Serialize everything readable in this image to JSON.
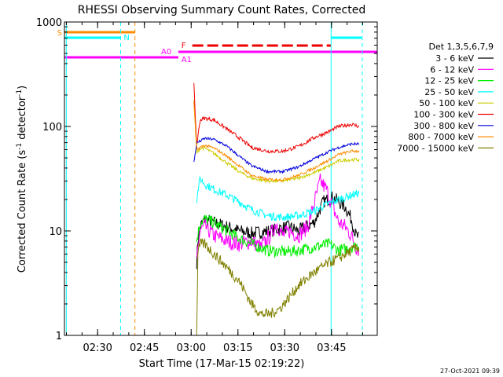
{
  "chart_data": {
    "type": "line",
    "title": "RHESSI Observing Summary Count Rates, Corrected",
    "xlabel": "Start Time (17-Mar-15 02:19:22)",
    "ylabel_main": "Corrected Count Rate (s",
    "ylabel_sup1": "-1",
    "ylabel_mid": " detector",
    "ylabel_sup2": "-1",
    "ylabel_end": ")",
    "yscale": "log",
    "ylim": [
      1,
      1000
    ],
    "xlim": [
      "02:19:22",
      "03:59:40"
    ],
    "x_ticks": [
      "02:30",
      "02:45",
      "03:00",
      "03:15",
      "03:30",
      "03:45"
    ],
    "y_ticks": [
      "1",
      "10",
      "100",
      "1000"
    ],
    "legend": {
      "title": "Det 1,3,5,6,7,9",
      "placement": "right",
      "entries": [
        {
          "label": "3 - 6 keV",
          "color": "#000000"
        },
        {
          "label": "6 - 12 keV",
          "color": "#ff00ff"
        },
        {
          "label": "12 - 25 keV",
          "color": "#00ee00"
        },
        {
          "label": "25 - 50 keV",
          "color": "#00ffff"
        },
        {
          "label": "50 - 100 keV",
          "color": "#cccc00"
        },
        {
          "label": "100 - 300 keV",
          "color": "#ee0000"
        },
        {
          "label": "300 - 800 keV",
          "color": "#0000dd"
        },
        {
          "label": "800 - 7000 keV",
          "color": "#ff8c00"
        },
        {
          "label": "7000 - 15000 keV",
          "color": "#808000"
        }
      ]
    },
    "series": [
      {
        "name": "3 - 6 keV",
        "color": "#000000",
        "noise": 0.25,
        "points": [
          [
            42.4,
            5
          ],
          [
            42.8,
            8
          ],
          [
            43.5,
            11
          ],
          [
            45,
            13
          ],
          [
            48,
            12
          ],
          [
            52,
            11
          ],
          [
            56,
            10
          ],
          [
            60,
            9.5
          ],
          [
            66,
            10
          ],
          [
            72,
            11
          ],
          [
            75,
            10
          ],
          [
            80,
            12
          ],
          [
            83,
            19
          ],
          [
            86,
            21
          ],
          [
            90,
            17
          ],
          [
            92,
            13
          ],
          [
            93.5,
            9
          ],
          [
            94.5,
            8.5
          ]
        ]
      },
      {
        "name": "6 - 12 keV",
        "color": "#ff00ff",
        "noise": 0.3,
        "points": [
          [
            42.4,
            5
          ],
          [
            42.8,
            7
          ],
          [
            43.5,
            10
          ],
          [
            45,
            11
          ],
          [
            48,
            9
          ],
          [
            52,
            8
          ],
          [
            56,
            7.5
          ],
          [
            60,
            8
          ],
          [
            63,
            7
          ],
          [
            66,
            9
          ],
          [
            68,
            12
          ],
          [
            70,
            9
          ],
          [
            72,
            10
          ],
          [
            75,
            9
          ],
          [
            78,
            11
          ],
          [
            80,
            18
          ],
          [
            82,
            30
          ],
          [
            84,
            25
          ],
          [
            86,
            17
          ],
          [
            88,
            12
          ],
          [
            90,
            11
          ],
          [
            92,
            9
          ],
          [
            93.5,
            7
          ],
          [
            94.5,
            6.5
          ]
        ]
      },
      {
        "name": "12 - 25 keV",
        "color": "#00ee00",
        "noise": 0.22,
        "points": [
          [
            42.4,
            8
          ],
          [
            43.5,
            12
          ],
          [
            45,
            13
          ],
          [
            48,
            12
          ],
          [
            52,
            10
          ],
          [
            56,
            8.5
          ],
          [
            60,
            7.5
          ],
          [
            65,
            6.5
          ],
          [
            70,
            6.3
          ],
          [
            75,
            6.5
          ],
          [
            80,
            7
          ],
          [
            85,
            7.5
          ],
          [
            88,
            6.5
          ],
          [
            92,
            7
          ],
          [
            94.5,
            7.2
          ]
        ]
      },
      {
        "name": "25 - 50 keV",
        "color": "#00ffff",
        "noise": 0.15,
        "points": [
          [
            42.4,
            20
          ],
          [
            43.5,
            32
          ],
          [
            45,
            28
          ],
          [
            48,
            25
          ],
          [
            52,
            22
          ],
          [
            56,
            19
          ],
          [
            60,
            16
          ],
          [
            65,
            14
          ],
          [
            70,
            13.5
          ],
          [
            75,
            14
          ],
          [
            80,
            15.5
          ],
          [
            85,
            18.5
          ],
          [
            88,
            20
          ],
          [
            92,
            22
          ],
          [
            94.5,
            23
          ]
        ]
      },
      {
        "name": "50 - 100 keV",
        "color": "#cccc00",
        "noise": 0.06,
        "points": [
          [
            41.5,
            180
          ],
          [
            42.4,
            55
          ],
          [
            43.5,
            62
          ],
          [
            45,
            62
          ],
          [
            48,
            55
          ],
          [
            52,
            45
          ],
          [
            56,
            37
          ],
          [
            60,
            32
          ],
          [
            65,
            30
          ],
          [
            70,
            30
          ],
          [
            75,
            32
          ],
          [
            80,
            36
          ],
          [
            85,
            42
          ],
          [
            88,
            47
          ],
          [
            92,
            48
          ],
          [
            94.5,
            48
          ]
        ]
      },
      {
        "name": "100 - 300 keV",
        "color": "#ee0000",
        "noise": 0.07,
        "points": [
          [
            41.5,
            250
          ],
          [
            42.4,
            65
          ],
          [
            43.5,
            115
          ],
          [
            45,
            120
          ],
          [
            48,
            115
          ],
          [
            52,
            95
          ],
          [
            56,
            78
          ],
          [
            60,
            63
          ],
          [
            65,
            58
          ],
          [
            70,
            58
          ],
          [
            75,
            64
          ],
          [
            80,
            78
          ],
          [
            85,
            90
          ],
          [
            88,
            100
          ],
          [
            92,
            105
          ],
          [
            94.5,
            100
          ]
        ]
      },
      {
        "name": "300 - 800 keV",
        "color": "#0000dd",
        "noise": 0.05,
        "points": [
          [
            41.5,
            45
          ],
          [
            42.4,
            70
          ],
          [
            43.5,
            72
          ],
          [
            45,
            77
          ],
          [
            48,
            75
          ],
          [
            52,
            65
          ],
          [
            56,
            52
          ],
          [
            60,
            42
          ],
          [
            65,
            37
          ],
          [
            70,
            37
          ],
          [
            75,
            41
          ],
          [
            80,
            49
          ],
          [
            85,
            58
          ],
          [
            88,
            63
          ],
          [
            92,
            68
          ],
          [
            94.5,
            68
          ]
        ]
      },
      {
        "name": "800 - 7000 keV",
        "color": "#ff8c00",
        "noise": 0.05,
        "points": [
          [
            41.5,
            170
          ],
          [
            42.4,
            60
          ],
          [
            43.5,
            63
          ],
          [
            45,
            66
          ],
          [
            48,
            62
          ],
          [
            52,
            52
          ],
          [
            56,
            42
          ],
          [
            60,
            34
          ],
          [
            65,
            31
          ],
          [
            70,
            31
          ],
          [
            75,
            34
          ],
          [
            80,
            40
          ],
          [
            85,
            48
          ],
          [
            88,
            54
          ],
          [
            92,
            58
          ],
          [
            94.5,
            58
          ]
        ]
      },
      {
        "name": "7000 - 15000 keV",
        "color": "#808000",
        "noise": 0.2,
        "points": [
          [
            42.4,
            1
          ],
          [
            42.8,
            6
          ],
          [
            43.5,
            7.5
          ],
          [
            45,
            7.5
          ],
          [
            48,
            6
          ],
          [
            52,
            4.5
          ],
          [
            56,
            3.3
          ],
          [
            58,
            2.6
          ],
          [
            60,
            2
          ],
          [
            63,
            1.6
          ],
          [
            66,
            1.6
          ],
          [
            69,
            1.8
          ],
          [
            72,
            2.3
          ],
          [
            75,
            3
          ],
          [
            80,
            4
          ],
          [
            85,
            5
          ],
          [
            88,
            5.5
          ],
          [
            92,
            6.5
          ],
          [
            94.5,
            7
          ]
        ]
      }
    ],
    "states": [
      {
        "label": "S",
        "color": "#ff8c00"
      },
      {
        "label": "N",
        "color": "#00ffff"
      },
      {
        "label": "F",
        "color": "#ee0000"
      },
      {
        "label": "A0",
        "color": "#ff00ff"
      },
      {
        "label": "A1",
        "color": "#ff00ff"
      }
    ],
    "timestamp": "27-Oct-2021 09:39"
  }
}
